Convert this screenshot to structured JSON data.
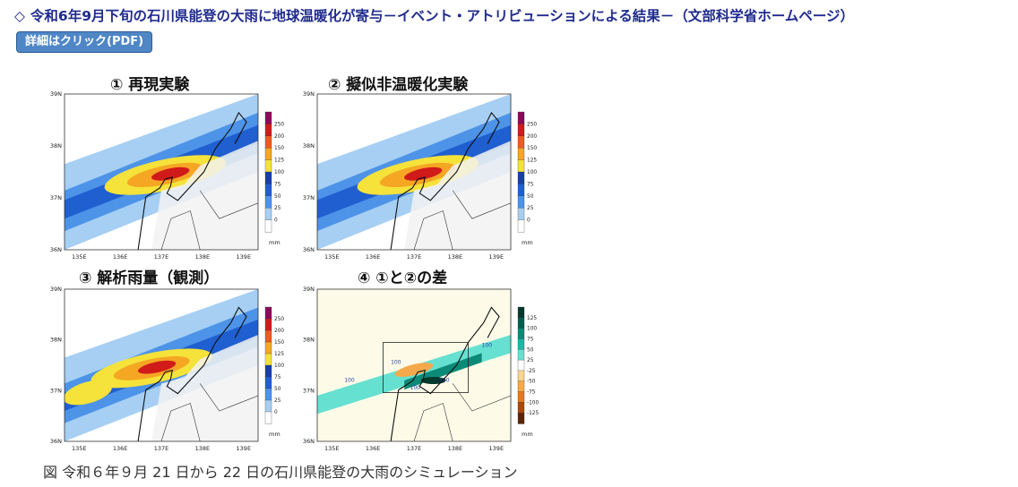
{
  "headline": {
    "icon": "diamond-outline-icon",
    "text": "令和6年9月下旬の石川県能登の大雨に地球温暖化が寄与－イベント・アトリビューションによる結果－（文部科学省ホームページ）"
  },
  "pdf_button": {
    "label": "詳細はクリック(PDF)",
    "color": "#4f86c6"
  },
  "figure": {
    "panels": [
      {
        "title": "① 再現実験",
        "lat_labels": [
          "39N",
          "38N",
          "37N",
          "36N"
        ],
        "lon_labels": [
          "135E",
          "136E",
          "137E",
          "138E",
          "139E"
        ],
        "colorbar": {
          "ticks": [
            "250",
            "200",
            "150",
            "125",
            "100",
            "75",
            "50",
            "25",
            "0"
          ],
          "unit": "mm"
        }
      },
      {
        "title": "② 擬似非温暖化実験",
        "lat_labels": [
          "39N",
          "38N",
          "37N",
          "36N"
        ],
        "lon_labels": [
          "135E",
          "136E",
          "137E",
          "138E",
          "139E"
        ],
        "colorbar": {
          "ticks": [
            "250",
            "200",
            "150",
            "125",
            "100",
            "75",
            "50",
            "25",
            "0"
          ],
          "unit": "mm"
        }
      },
      {
        "title": "③ 解析雨量（観測）",
        "lat_labels": [
          "39N",
          "38N",
          "37N",
          "36N"
        ],
        "lon_labels": [
          "135E",
          "136E",
          "137E",
          "138E",
          "139E"
        ],
        "colorbar": {
          "ticks": [
            "250",
            "200",
            "150",
            "125",
            "100",
            "75",
            "50",
            "25",
            "0"
          ],
          "unit": "mm"
        }
      },
      {
        "title": "④ ①と②の差",
        "lat_labels": [
          "39N",
          "38N",
          "37N",
          "36N"
        ],
        "lon_labels": [
          "135E",
          "136E",
          "137E",
          "138E",
          "139E"
        ],
        "contour_labels": [
          "100",
          "100",
          "100",
          "100",
          "100"
        ],
        "colorbar": {
          "ticks": [
            "125",
            "100",
            "75",
            "50",
            "25",
            "-25",
            "-50",
            "-75",
            "-100",
            "-125"
          ],
          "unit": "mm"
        }
      }
    ],
    "colors": {
      "precip": [
        "#a6cff3",
        "#4d93e8",
        "#1f5fd0",
        "#163fa8",
        "#f5e23a",
        "#f5a623",
        "#ee5a24",
        "#d11b1b",
        "#8b0a5c"
      ],
      "diff_pos": [
        "#66e0d0",
        "#1cb8a6",
        "#0c8a78",
        "#075e50",
        "#04392e"
      ],
      "diff_neg": [
        "#fbd38d",
        "#f6a94a",
        "#e07b20",
        "#a84b0a",
        "#5c2604"
      ]
    }
  },
  "caption": "図 令和６年９月 21 日から 22 日の石川県能登の大雨のシミュレーション"
}
